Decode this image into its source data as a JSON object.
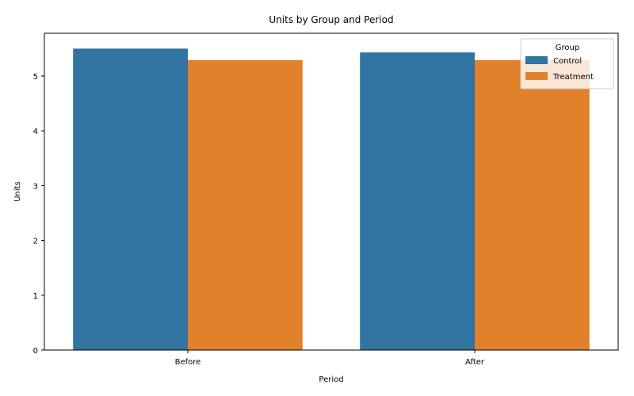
{
  "chart_data": {
    "type": "bar",
    "title": "Units by Group and Period",
    "xlabel": "Period",
    "ylabel": "Units",
    "categories": [
      "Before",
      "After"
    ],
    "series": [
      {
        "name": "Control",
        "color": "#3274a1",
        "values": [
          5.5,
          5.43
        ]
      },
      {
        "name": "Treatment",
        "color": "#e1812c",
        "values": [
          5.29,
          5.29
        ]
      }
    ],
    "ylim": [
      0,
      5.78
    ],
    "yticks": [
      "0",
      "1",
      "2",
      "3",
      "4",
      "5"
    ],
    "legend": {
      "title": "Group",
      "placement": "top-right"
    },
    "grid": false
  }
}
